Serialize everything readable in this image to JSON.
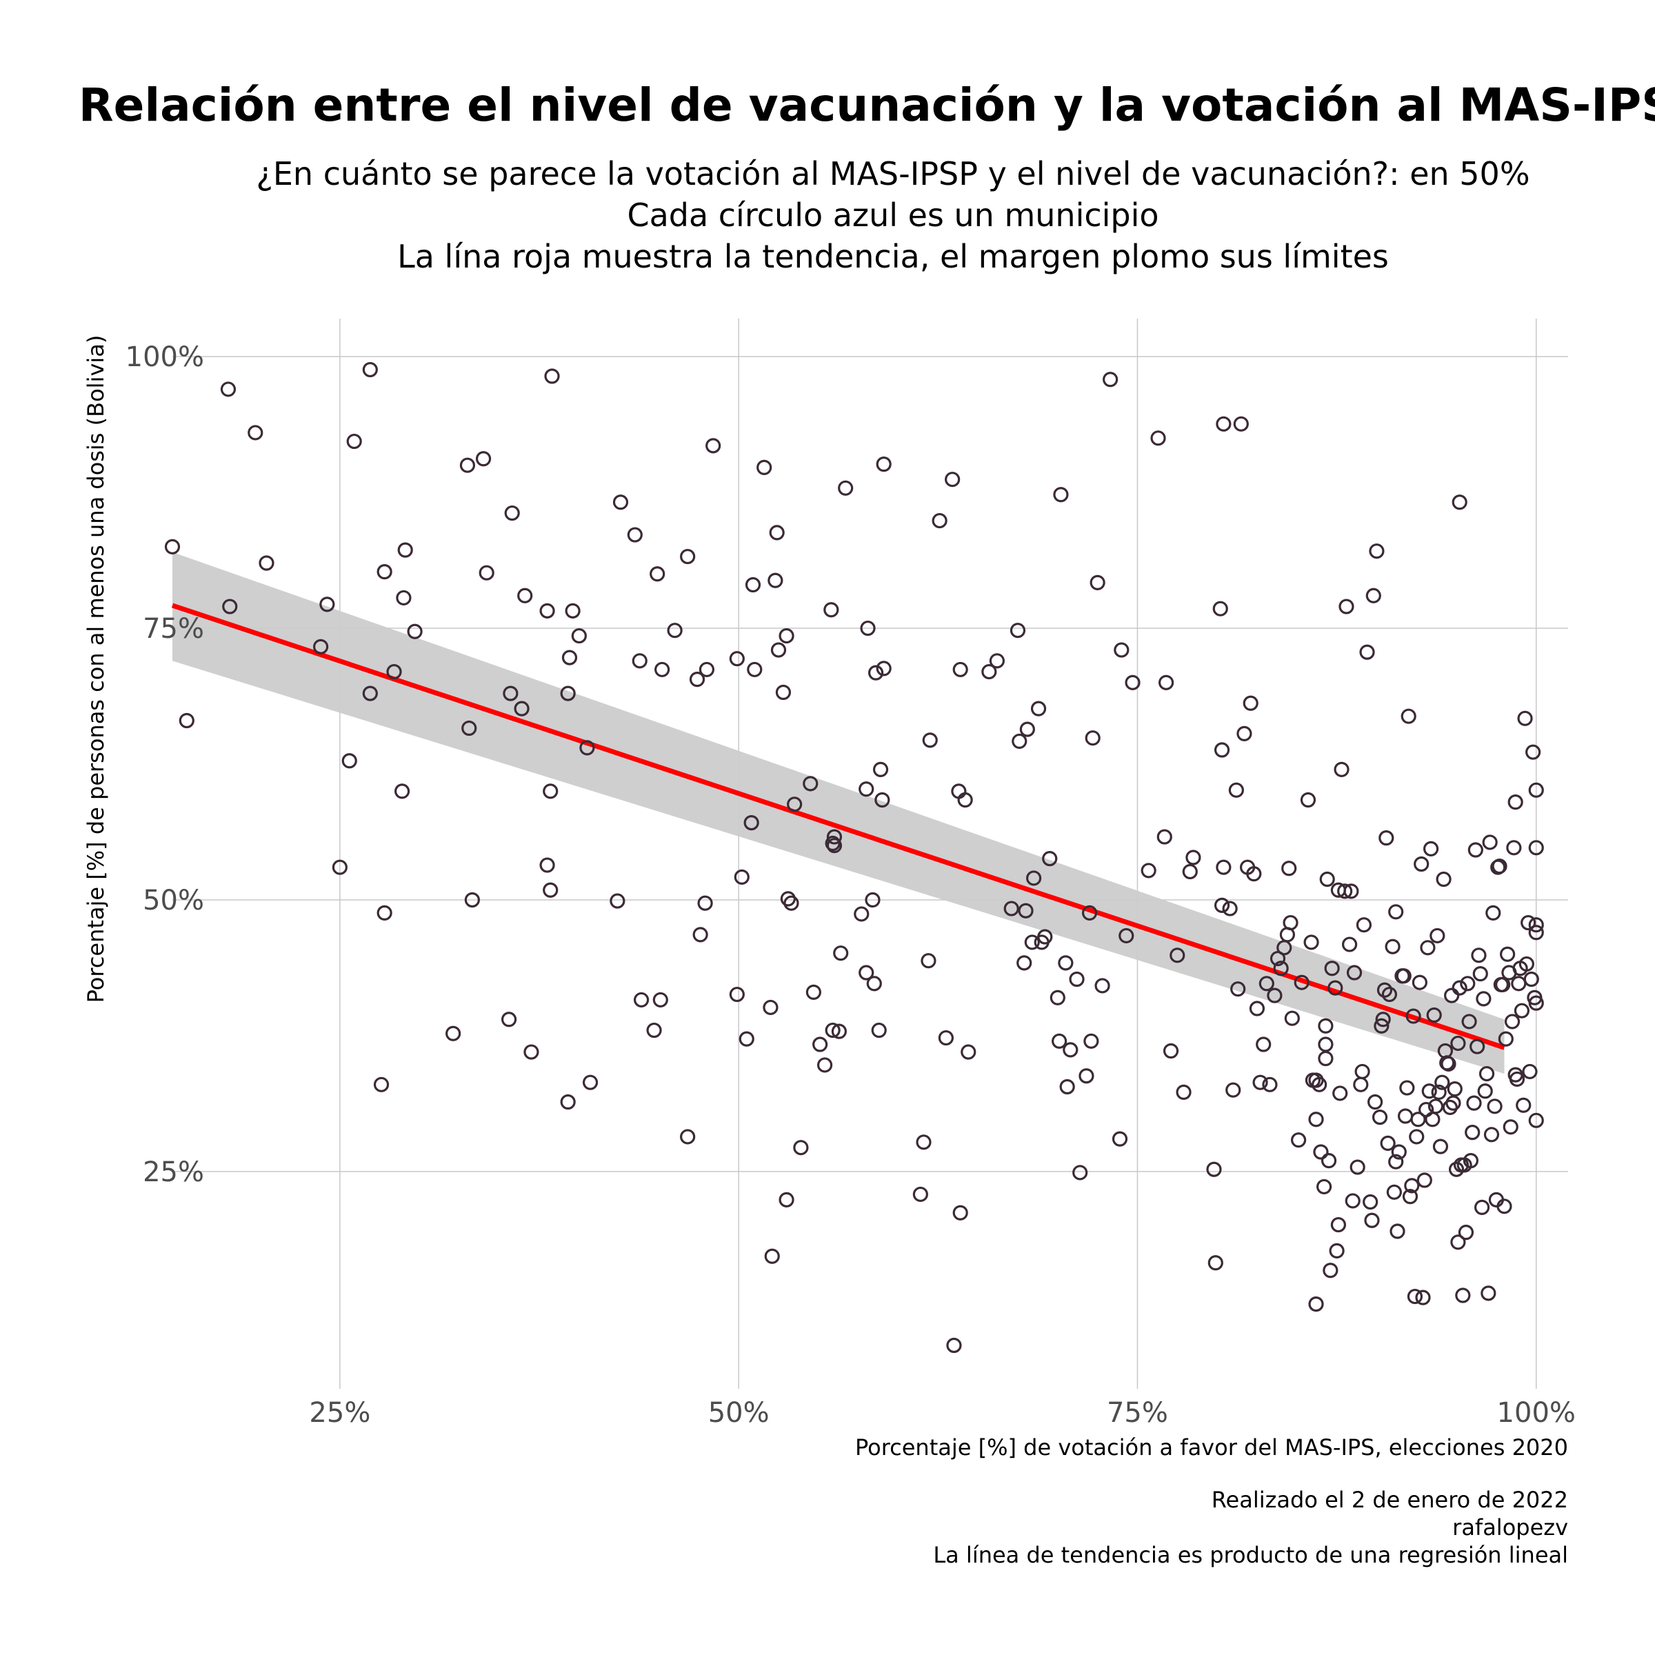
{
  "chart_data": {
    "type": "scatter",
    "title": "Relación entre el nivel de vacunación y la votación al MAS-IPSP",
    "subtitle": [
      "¿En cuánto se parece la votación al MAS-IPSP y el nivel de vacunación?: en 50%",
      "Cada círculo azul es un municipio",
      "La lína roja muestra la tendencia, el margen plomo sus límites"
    ],
    "xlabel": "Porcentaje [%] de votación a favor del MAS-IPS, elecciones 2020",
    "ylabel": "Porcentaje [%] de personas con al menos una dosis (Bolivia)",
    "caption": [
      "Realizado el 2 de enero de 2022",
      "rafalopezv",
      "La línea de tendencia es producto de una regresión lineal"
    ],
    "xlim": [
      0.145,
      1.02
    ],
    "ylim": [
      0.05,
      1.035
    ],
    "x_ticks": [
      0.25,
      0.5,
      0.75,
      1.0
    ],
    "x_tick_labels": [
      "25%",
      "50%",
      "75%",
      "100%"
    ],
    "y_ticks": [
      0.25,
      0.5,
      0.75,
      1.0
    ],
    "y_tick_labels": [
      "25%",
      "50%",
      "75%",
      "100%"
    ],
    "grid": true,
    "colors": {
      "points": "#3b2a36",
      "trend": "#ff0000",
      "band": "#cccccc"
    },
    "trend_line": {
      "x": [
        0.145,
        0.98
      ],
      "y": [
        0.771,
        0.364
      ]
    },
    "confidence_band": {
      "x": [
        0.145,
        0.98
      ],
      "lower": [
        0.72,
        0.34
      ],
      "upper": [
        0.82,
        0.39
      ]
    },
    "points": [
      [
        0.145,
        0.825
      ],
      [
        0.154,
        0.665
      ],
      [
        0.18,
        0.97
      ],
      [
        0.181,
        0.77
      ],
      [
        0.197,
        0.93
      ],
      [
        0.204,
        0.81
      ],
      [
        0.238,
        0.733
      ],
      [
        0.242,
        0.772
      ],
      [
        0.25,
        0.53
      ],
      [
        0.256,
        0.628
      ],
      [
        0.259,
        0.922
      ],
      [
        0.269,
        0.988
      ],
      [
        0.269,
        0.69
      ],
      [
        0.276,
        0.33
      ],
      [
        0.278,
        0.488
      ],
      [
        0.278,
        0.802
      ],
      [
        0.284,
        0.71
      ],
      [
        0.289,
        0.6
      ],
      [
        0.29,
        0.778
      ],
      [
        0.291,
        0.822
      ],
      [
        0.297,
        0.747
      ],
      [
        0.321,
        0.377
      ],
      [
        0.33,
        0.9
      ],
      [
        0.331,
        0.658
      ],
      [
        0.333,
        0.5
      ],
      [
        0.34,
        0.906
      ],
      [
        0.342,
        0.801
      ],
      [
        0.356,
        0.39
      ],
      [
        0.357,
        0.69
      ],
      [
        0.358,
        0.856
      ],
      [
        0.364,
        0.676
      ],
      [
        0.366,
        0.78
      ],
      [
        0.37,
        0.36
      ],
      [
        0.38,
        0.766
      ],
      [
        0.38,
        0.532
      ],
      [
        0.382,
        0.6
      ],
      [
        0.382,
        0.509
      ],
      [
        0.383,
        0.982
      ],
      [
        0.393,
        0.314
      ],
      [
        0.393,
        0.69
      ],
      [
        0.394,
        0.723
      ],
      [
        0.396,
        0.766
      ],
      [
        0.4,
        0.743
      ],
      [
        0.405,
        0.64
      ],
      [
        0.407,
        0.332
      ],
      [
        0.424,
        0.499
      ],
      [
        0.426,
        0.866
      ],
      [
        0.435,
        0.836
      ],
      [
        0.438,
        0.72
      ],
      [
        0.439,
        0.408
      ],
      [
        0.447,
        0.38
      ],
      [
        0.449,
        0.8
      ],
      [
        0.451,
        0.408
      ],
      [
        0.452,
        0.712
      ],
      [
        0.46,
        0.748
      ],
      [
        0.468,
        0.816
      ],
      [
        0.468,
        0.282
      ],
      [
        0.474,
        0.703
      ],
      [
        0.476,
        0.468
      ],
      [
        0.479,
        0.497
      ],
      [
        0.48,
        0.712
      ],
      [
        0.484,
        0.918
      ],
      [
        0.499,
        0.722
      ],
      [
        0.499,
        0.413
      ],
      [
        0.502,
        0.521
      ],
      [
        0.505,
        0.372
      ],
      [
        0.508,
        0.571
      ],
      [
        0.509,
        0.79
      ],
      [
        0.51,
        0.712
      ],
      [
        0.516,
        0.898
      ],
      [
        0.52,
        0.401
      ],
      [
        0.521,
        0.172
      ],
      [
        0.523,
        0.794
      ],
      [
        0.524,
        0.838
      ],
      [
        0.525,
        0.73
      ],
      [
        0.528,
        0.691
      ],
      [
        0.53,
        0.743
      ],
      [
        0.53,
        0.224
      ],
      [
        0.531,
        0.501
      ],
      [
        0.533,
        0.497
      ],
      [
        0.535,
        0.588
      ],
      [
        0.539,
        0.272
      ],
      [
        0.545,
        0.607
      ],
      [
        0.547,
        0.415
      ],
      [
        0.551,
        0.367
      ],
      [
        0.554,
        0.348
      ],
      [
        0.558,
        0.767
      ],
      [
        0.559,
        0.38
      ],
      [
        0.559,
        0.552
      ],
      [
        0.56,
        0.55
      ],
      [
        0.56,
        0.558
      ],
      [
        0.563,
        0.379
      ],
      [
        0.564,
        0.451
      ],
      [
        0.567,
        0.879
      ],
      [
        0.577,
        0.487
      ],
      [
        0.58,
        0.602
      ],
      [
        0.58,
        0.433
      ],
      [
        0.581,
        0.75
      ],
      [
        0.584,
        0.5
      ],
      [
        0.585,
        0.423
      ],
      [
        0.586,
        0.709
      ],
      [
        0.588,
        0.38
      ],
      [
        0.589,
        0.62
      ],
      [
        0.59,
        0.592
      ],
      [
        0.591,
        0.901
      ],
      [
        0.591,
        0.713
      ],
      [
        0.614,
        0.229
      ],
      [
        0.616,
        0.277
      ],
      [
        0.619,
        0.444
      ],
      [
        0.62,
        0.647
      ],
      [
        0.626,
        0.849
      ],
      [
        0.63,
        0.373
      ],
      [
        0.634,
        0.887
      ],
      [
        0.635,
        0.09
      ],
      [
        0.638,
        0.6
      ],
      [
        0.639,
        0.712
      ],
      [
        0.639,
        0.212
      ],
      [
        0.642,
        0.592
      ],
      [
        0.644,
        0.36
      ],
      [
        0.657,
        0.71
      ],
      [
        0.662,
        0.72
      ],
      [
        0.671,
        0.492
      ],
      [
        0.675,
        0.748
      ],
      [
        0.676,
        0.646
      ],
      [
        0.679,
        0.442
      ],
      [
        0.68,
        0.49
      ],
      [
        0.681,
        0.657
      ],
      [
        0.684,
        0.461
      ],
      [
        0.685,
        0.52
      ],
      [
        0.688,
        0.676
      ],
      [
        0.69,
        0.461
      ],
      [
        0.692,
        0.466
      ],
      [
        0.695,
        0.538
      ],
      [
        0.7,
        0.41
      ],
      [
        0.701,
        0.37
      ],
      [
        0.702,
        0.873
      ],
      [
        0.705,
        0.442
      ],
      [
        0.706,
        0.328
      ],
      [
        0.708,
        0.362
      ],
      [
        0.712,
        0.427
      ],
      [
        0.714,
        0.249
      ],
      [
        0.718,
        0.338
      ],
      [
        0.72,
        0.488
      ],
      [
        0.721,
        0.37
      ],
      [
        0.722,
        0.649
      ],
      [
        0.725,
        0.792
      ],
      [
        0.728,
        0.421
      ],
      [
        0.733,
        0.979
      ],
      [
        0.739,
        0.28
      ],
      [
        0.74,
        0.73
      ],
      [
        0.743,
        0.467
      ],
      [
        0.747,
        0.7
      ],
      [
        0.757,
        0.527
      ],
      [
        0.763,
        0.925
      ],
      [
        0.767,
        0.558
      ],
      [
        0.768,
        0.7
      ],
      [
        0.771,
        0.361
      ],
      [
        0.775,
        0.449
      ],
      [
        0.779,
        0.323
      ],
      [
        0.783,
        0.526
      ],
      [
        0.785,
        0.539
      ],
      [
        0.798,
        0.252
      ],
      [
        0.799,
        0.166
      ],
      [
        0.802,
        0.768
      ],
      [
        0.803,
        0.495
      ],
      [
        0.803,
        0.638
      ],
      [
        0.804,
        0.53
      ],
      [
        0.804,
        0.938
      ],
      [
        0.808,
        0.492
      ],
      [
        0.81,
        0.325
      ],
      [
        0.812,
        0.601
      ],
      [
        0.813,
        0.418
      ],
      [
        0.815,
        0.938
      ],
      [
        0.817,
        0.653
      ],
      [
        0.819,
        0.53
      ],
      [
        0.821,
        0.681
      ],
      [
        0.823,
        0.524
      ],
      [
        0.825,
        0.4
      ],
      [
        0.827,
        0.332
      ],
      [
        0.829,
        0.367
      ],
      [
        0.831,
        0.423
      ],
      [
        0.833,
        0.33
      ],
      [
        0.836,
        0.412
      ],
      [
        0.838,
        0.446
      ],
      [
        0.84,
        0.437
      ],
      [
        0.842,
        0.456
      ],
      [
        0.844,
        0.468
      ],
      [
        0.845,
        0.529
      ],
      [
        0.846,
        0.479
      ],
      [
        0.847,
        0.391
      ],
      [
        0.851,
        0.279
      ],
      [
        0.853,
        0.424
      ],
      [
        0.857,
        0.592
      ],
      [
        0.859,
        0.461
      ],
      [
        0.86,
        0.334
      ],
      [
        0.862,
        0.128
      ],
      [
        0.862,
        0.334
      ],
      [
        0.862,
        0.298
      ],
      [
        0.864,
        0.33
      ],
      [
        0.865,
        0.268
      ],
      [
        0.867,
        0.236
      ],
      [
        0.868,
        0.384
      ],
      [
        0.868,
        0.354
      ],
      [
        0.868,
        0.367
      ],
      [
        0.869,
        0.519
      ],
      [
        0.87,
        0.26
      ],
      [
        0.871,
        0.159
      ],
      [
        0.872,
        0.437
      ],
      [
        0.874,
        0.419
      ],
      [
        0.875,
        0.177
      ],
      [
        0.876,
        0.201
      ],
      [
        0.876,
        0.509
      ],
      [
        0.877,
        0.322
      ],
      [
        0.878,
        0.62
      ],
      [
        0.88,
        0.508
      ],
      [
        0.881,
        0.77
      ],
      [
        0.883,
        0.459
      ],
      [
        0.884,
        0.508
      ],
      [
        0.885,
        0.223
      ],
      [
        0.886,
        0.433
      ],
      [
        0.888,
        0.254
      ],
      [
        0.89,
        0.33
      ],
      [
        0.891,
        0.342
      ],
      [
        0.892,
        0.477
      ],
      [
        0.894,
        0.728
      ],
      [
        0.896,
        0.222
      ],
      [
        0.897,
        0.205
      ],
      [
        0.898,
        0.78
      ],
      [
        0.899,
        0.314
      ],
      [
        0.9,
        0.821
      ],
      [
        0.902,
        0.3
      ],
      [
        0.903,
        0.384
      ],
      [
        0.904,
        0.39
      ],
      [
        0.905,
        0.417
      ],
      [
        0.906,
        0.557
      ],
      [
        0.907,
        0.276
      ],
      [
        0.908,
        0.413
      ],
      [
        0.91,
        0.457
      ],
      [
        0.911,
        0.231
      ],
      [
        0.912,
        0.489
      ],
      [
        0.912,
        0.259
      ],
      [
        0.913,
        0.195
      ],
      [
        0.914,
        0.268
      ],
      [
        0.916,
        0.43
      ],
      [
        0.917,
        0.43
      ],
      [
        0.918,
        0.301
      ],
      [
        0.919,
        0.327
      ],
      [
        0.92,
        0.669
      ],
      [
        0.921,
        0.227
      ],
      [
        0.922,
        0.237
      ],
      [
        0.923,
        0.393
      ],
      [
        0.924,
        0.135
      ],
      [
        0.925,
        0.282
      ],
      [
        0.926,
        0.298
      ],
      [
        0.927,
        0.424
      ],
      [
        0.928,
        0.533
      ],
      [
        0.929,
        0.134
      ],
      [
        0.93,
        0.242
      ],
      [
        0.931,
        0.307
      ],
      [
        0.932,
        0.456
      ],
      [
        0.933,
        0.324
      ],
      [
        0.934,
        0.547
      ],
      [
        0.935,
        0.298
      ],
      [
        0.936,
        0.394
      ],
      [
        0.937,
        0.31
      ],
      [
        0.938,
        0.467
      ],
      [
        0.939,
        0.323
      ],
      [
        0.94,
        0.273
      ],
      [
        0.941,
        0.332
      ],
      [
        0.942,
        0.519
      ],
      [
        0.943,
        0.361
      ],
      [
        0.944,
        0.35
      ],
      [
        0.945,
        0.349
      ],
      [
        0.946,
        0.309
      ],
      [
        0.947,
        0.412
      ],
      [
        0.948,
        0.313
      ],
      [
        0.949,
        0.326
      ],
      [
        0.95,
        0.252
      ],
      [
        0.951,
        0.185
      ],
      [
        0.951,
        0.368
      ],
      [
        0.952,
        0.419
      ],
      [
        0.952,
        0.866
      ],
      [
        0.953,
        0.256
      ],
      [
        0.954,
        0.136
      ],
      [
        0.955,
        0.256
      ],
      [
        0.956,
        0.194
      ],
      [
        0.957,
        0.423
      ],
      [
        0.958,
        0.388
      ],
      [
        0.959,
        0.26
      ],
      [
        0.96,
        0.286
      ],
      [
        0.961,
        0.313
      ],
      [
        0.962,
        0.546
      ],
      [
        0.963,
        0.365
      ],
      [
        0.964,
        0.449
      ],
      [
        0.965,
        0.432
      ],
      [
        0.966,
        0.217
      ],
      [
        0.967,
        0.409
      ],
      [
        0.968,
        0.324
      ],
      [
        0.969,
        0.34
      ],
      [
        0.97,
        0.138
      ],
      [
        0.971,
        0.553
      ],
      [
        0.972,
        0.284
      ],
      [
        0.973,
        0.488
      ],
      [
        0.974,
        0.31
      ],
      [
        0.975,
        0.224
      ],
      [
        0.976,
        0.53
      ],
      [
        0.977,
        0.531
      ],
      [
        0.978,
        0.422
      ],
      [
        0.979,
        0.422
      ],
      [
        0.98,
        0.218
      ],
      [
        0.981,
        0.372
      ],
      [
        0.982,
        0.45
      ],
      [
        0.983,
        0.433
      ],
      [
        0.984,
        0.291
      ],
      [
        0.985,
        0.388
      ],
      [
        0.986,
        0.548
      ],
      [
        0.987,
        0.59
      ],
      [
        0.987,
        0.339
      ],
      [
        0.988,
        0.335
      ],
      [
        0.989,
        0.423
      ],
      [
        0.99,
        0.437
      ],
      [
        0.991,
        0.398
      ],
      [
        0.992,
        0.311
      ],
      [
        0.993,
        0.667
      ],
      [
        0.994,
        0.441
      ],
      [
        0.995,
        0.479
      ],
      [
        0.996,
        0.342
      ],
      [
        0.997,
        0.427
      ],
      [
        0.998,
        0.636
      ],
      [
        0.999,
        0.41
      ],
      [
        1.0,
        0.548
      ],
      [
        1.0,
        0.601
      ],
      [
        1.0,
        0.47
      ],
      [
        1.0,
        0.477
      ],
      [
        1.0,
        0.405
      ],
      [
        1.0,
        0.297
      ]
    ]
  }
}
